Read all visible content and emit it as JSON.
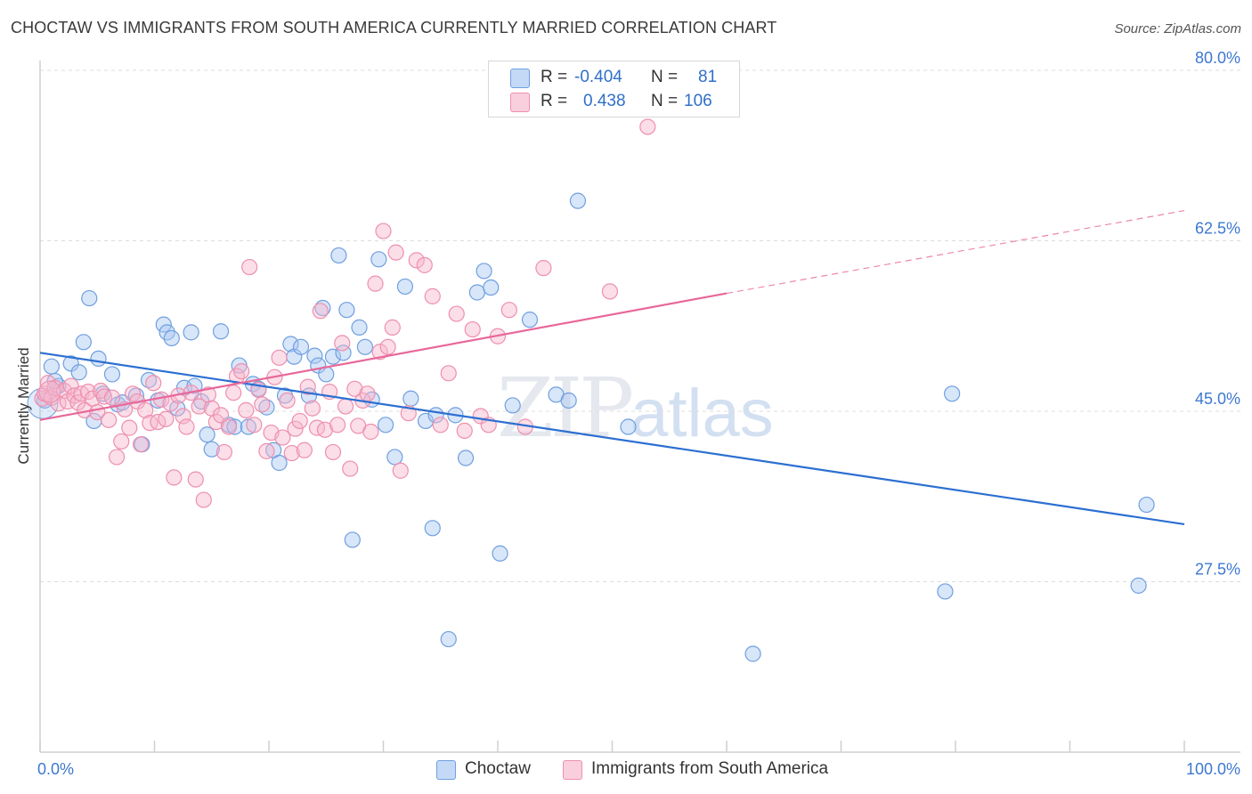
{
  "title": "CHOCTAW VS IMMIGRANTS FROM SOUTH AMERICA CURRENTLY MARRIED CORRELATION CHART",
  "source": "Source: ZipAtlas.com",
  "watermark": {
    "zip": "ZIP",
    "atlas": "atlas"
  },
  "legend": {
    "rows": [
      {
        "r_label": "R =",
        "r_value": "-0.404",
        "n_label": "N =",
        "n_value": "81",
        "color": "#a9c8f2"
      },
      {
        "r_label": "R =",
        "r_value": "0.438",
        "n_label": "N =",
        "n_value": "106",
        "color": "#f6b6cb"
      }
    ]
  },
  "bottom_legend": [
    "Choctaw",
    "Immigrants from South America"
  ],
  "chart_data": {
    "type": "scatter",
    "title": "CHOCTAW VS IMMIGRANTS FROM SOUTH AMERICA CURRENTLY MARRIED CORRELATION CHART",
    "xlabel": "",
    "ylabel": "Currently Married",
    "xlim": [
      0,
      100
    ],
    "ylim": [
      10,
      82
    ],
    "x_tick_labels": [
      "0.0%",
      "100.0%"
    ],
    "y_ticks": [
      27.5,
      45.0,
      62.5,
      80.0
    ],
    "y_tick_labels": [
      "27.5%",
      "45.0%",
      "62.5%",
      "80.0%"
    ],
    "grid": true,
    "legend_position": "top-center",
    "series": [
      {
        "name": "Choctaw",
        "color": "#6f9fe0",
        "fill": "#a9c8f2",
        "r": -0.404,
        "n": 81,
        "trend": {
          "x": [
            0,
            100
          ],
          "y": [
            51.0,
            33.4
          ],
          "style": "solid",
          "color": "#2c6fd1"
        },
        "points": [
          [
            0.4,
            46.1
          ],
          [
            1.0,
            49.6
          ],
          [
            1.6,
            47.6
          ],
          [
            1.3,
            48.1
          ],
          [
            2.7,
            49.9
          ],
          [
            3.4,
            49.0
          ],
          [
            3.8,
            52.1
          ],
          [
            4.3,
            56.6
          ],
          [
            4.7,
            44.0
          ],
          [
            5.1,
            50.4
          ],
          [
            5.5,
            46.8
          ],
          [
            6.3,
            48.8
          ],
          [
            6.8,
            45.7
          ],
          [
            7.2,
            45.9
          ],
          [
            8.4,
            46.6
          ],
          [
            8.9,
            41.6
          ],
          [
            9.5,
            48.2
          ],
          [
            10.3,
            46.1
          ],
          [
            10.8,
            53.9
          ],
          [
            11.1,
            53.1
          ],
          [
            11.5,
            52.5
          ],
          [
            12.0,
            45.3
          ],
          [
            12.6,
            47.4
          ],
          [
            13.2,
            53.1
          ],
          [
            13.5,
            47.6
          ],
          [
            14.1,
            46.0
          ],
          [
            14.6,
            42.6
          ],
          [
            15.0,
            41.1
          ],
          [
            15.8,
            53.2
          ],
          [
            16.5,
            43.6
          ],
          [
            17.0,
            43.4
          ],
          [
            17.4,
            49.7
          ],
          [
            18.2,
            43.4
          ],
          [
            18.6,
            47.8
          ],
          [
            19.1,
            47.3
          ],
          [
            19.8,
            45.4
          ],
          [
            20.4,
            41.0
          ],
          [
            20.9,
            39.7
          ],
          [
            21.4,
            46.6
          ],
          [
            21.9,
            51.9
          ],
          [
            22.2,
            50.6
          ],
          [
            22.8,
            51.6
          ],
          [
            23.5,
            46.6
          ],
          [
            24.0,
            50.7
          ],
          [
            24.3,
            49.7
          ],
          [
            24.7,
            55.6
          ],
          [
            25.0,
            48.8
          ],
          [
            25.6,
            50.6
          ],
          [
            26.1,
            61.0
          ],
          [
            26.5,
            51.0
          ],
          [
            26.8,
            55.4
          ],
          [
            27.3,
            31.8
          ],
          [
            27.9,
            53.6
          ],
          [
            28.4,
            51.6
          ],
          [
            29.0,
            46.2
          ],
          [
            29.6,
            60.6
          ],
          [
            30.2,
            43.6
          ],
          [
            31.0,
            40.3
          ],
          [
            31.9,
            57.8
          ],
          [
            32.4,
            46.3
          ],
          [
            33.7,
            44.0
          ],
          [
            34.3,
            33.0
          ],
          [
            34.6,
            44.6
          ],
          [
            35.7,
            21.6
          ],
          [
            36.3,
            44.6
          ],
          [
            37.2,
            40.2
          ],
          [
            38.2,
            57.2
          ],
          [
            38.8,
            59.4
          ],
          [
            39.4,
            57.7
          ],
          [
            40.2,
            30.4
          ],
          [
            41.3,
            45.6
          ],
          [
            42.8,
            54.4
          ],
          [
            45.1,
            46.7
          ],
          [
            46.2,
            46.1
          ],
          [
            47.0,
            66.6
          ],
          [
            51.4,
            43.4
          ],
          [
            62.3,
            20.1
          ],
          [
            79.1,
            26.5
          ],
          [
            79.7,
            46.8
          ],
          [
            96.0,
            27.1
          ],
          [
            96.7,
            35.4
          ]
        ]
      },
      {
        "name": "Immigrants from South America",
        "color": "#ee8fae",
        "fill": "#f6b6cb",
        "r": 0.438,
        "n": 106,
        "trend": {
          "x": [
            0,
            60
          ],
          "y": [
            44.1,
            57.1
          ],
          "style": "solid",
          "color": "#e8689a",
          "extension": {
            "x": [
              60,
              100
            ],
            "y": [
              57.1,
              65.6
            ],
            "style": "dashed"
          }
        },
        "points": [
          [
            0.2,
            46.3
          ],
          [
            0.4,
            46.8
          ],
          [
            0.7,
            47.9
          ],
          [
            1.0,
            46.4
          ],
          [
            1.3,
            47.4
          ],
          [
            1.6,
            45.8
          ],
          [
            2.1,
            47.1
          ],
          [
            2.4,
            46.0
          ],
          [
            2.7,
            47.6
          ],
          [
            3.0,
            46.6
          ],
          [
            3.3,
            45.9
          ],
          [
            3.6,
            46.8
          ],
          [
            3.9,
            45.1
          ],
          [
            4.2,
            47.0
          ],
          [
            4.6,
            46.3
          ],
          [
            5.0,
            44.9
          ],
          [
            5.3,
            47.1
          ],
          [
            5.6,
            46.5
          ],
          [
            6.0,
            44.1
          ],
          [
            6.3,
            46.4
          ],
          [
            6.7,
            40.3
          ],
          [
            7.1,
            41.9
          ],
          [
            7.4,
            45.2
          ],
          [
            7.8,
            43.3
          ],
          [
            8.1,
            46.8
          ],
          [
            8.5,
            46.0
          ],
          [
            8.8,
            41.6
          ],
          [
            9.2,
            45.1
          ],
          [
            9.6,
            43.8
          ],
          [
            9.9,
            47.9
          ],
          [
            10.3,
            43.9
          ],
          [
            10.6,
            46.2
          ],
          [
            11.0,
            44.2
          ],
          [
            11.4,
            45.8
          ],
          [
            11.7,
            38.2
          ],
          [
            12.1,
            46.6
          ],
          [
            12.5,
            44.5
          ],
          [
            12.8,
            43.4
          ],
          [
            13.2,
            46.9
          ],
          [
            13.6,
            38.0
          ],
          [
            13.9,
            45.5
          ],
          [
            14.3,
            35.9
          ],
          [
            14.7,
            46.7
          ],
          [
            15.0,
            45.3
          ],
          [
            15.4,
            43.9
          ],
          [
            15.8,
            44.6
          ],
          [
            16.1,
            40.8
          ],
          [
            16.5,
            43.4
          ],
          [
            16.9,
            46.9
          ],
          [
            17.2,
            48.6
          ],
          [
            17.6,
            49.1
          ],
          [
            18.0,
            45.1
          ],
          [
            18.3,
            59.8
          ],
          [
            18.7,
            43.6
          ],
          [
            19.1,
            47.2
          ],
          [
            19.4,
            45.7
          ],
          [
            19.8,
            40.9
          ],
          [
            20.2,
            42.8
          ],
          [
            20.5,
            48.5
          ],
          [
            20.9,
            50.5
          ],
          [
            21.2,
            42.3
          ],
          [
            21.6,
            46.1
          ],
          [
            22.0,
            40.7
          ],
          [
            22.3,
            43.2
          ],
          [
            22.7,
            44.0
          ],
          [
            23.1,
            41.0
          ],
          [
            23.4,
            47.5
          ],
          [
            23.8,
            45.3
          ],
          [
            24.2,
            43.3
          ],
          [
            24.5,
            55.3
          ],
          [
            24.9,
            43.1
          ],
          [
            25.3,
            47.0
          ],
          [
            25.6,
            40.8
          ],
          [
            26.0,
            43.6
          ],
          [
            26.4,
            52.0
          ],
          [
            26.7,
            45.5
          ],
          [
            27.1,
            39.1
          ],
          [
            27.5,
            47.3
          ],
          [
            27.8,
            43.5
          ],
          [
            28.2,
            46.1
          ],
          [
            28.6,
            46.8
          ],
          [
            28.9,
            42.9
          ],
          [
            29.3,
            58.1
          ],
          [
            29.7,
            51.1
          ],
          [
            30.0,
            63.5
          ],
          [
            30.4,
            51.6
          ],
          [
            30.8,
            53.6
          ],
          [
            31.1,
            61.3
          ],
          [
            31.5,
            38.9
          ],
          [
            32.2,
            44.8
          ],
          [
            32.9,
            60.5
          ],
          [
            33.6,
            60.0
          ],
          [
            34.3,
            56.8
          ],
          [
            35.0,
            43.6
          ],
          [
            35.7,
            48.9
          ],
          [
            36.4,
            55.0
          ],
          [
            37.1,
            43.0
          ],
          [
            37.8,
            53.4
          ],
          [
            38.5,
            44.5
          ],
          [
            39.2,
            43.6
          ],
          [
            40.0,
            52.7
          ],
          [
            41.0,
            55.4
          ],
          [
            42.4,
            43.4
          ],
          [
            44.0,
            59.7
          ],
          [
            49.8,
            57.3
          ],
          [
            53.1,
            74.2
          ]
        ]
      }
    ]
  }
}
